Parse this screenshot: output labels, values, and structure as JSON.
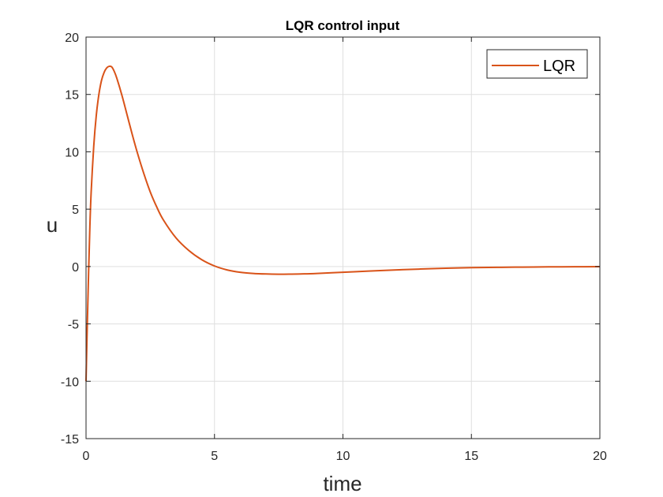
{
  "chart_data": {
    "type": "line",
    "title": "LQR control input",
    "xlabel": "time",
    "ylabel": "u",
    "xlim": [
      0,
      20
    ],
    "ylim": [
      -15,
      20
    ],
    "xticks": [
      0,
      5,
      10,
      15,
      20
    ],
    "yticks": [
      -15,
      -10,
      -5,
      0,
      5,
      10,
      15,
      20
    ],
    "grid": true,
    "legend_position": "top-right",
    "series": [
      {
        "name": "LQR",
        "color": "#d95319",
        "x": [
          0,
          0.05,
          0.1,
          0.15,
          0.2,
          0.3,
          0.4,
          0.5,
          0.6,
          0.7,
          0.8,
          0.9,
          1.0,
          1.1,
          1.2,
          1.4,
          1.6,
          1.8,
          2.0,
          2.25,
          2.5,
          2.75,
          3.0,
          3.5,
          4.0,
          4.5,
          5.0,
          5.5,
          6.0,
          6.5,
          7.0,
          7.5,
          8.0,
          8.5,
          9.0,
          10.0,
          11.0,
          12.0,
          13.0,
          14.0,
          15.0,
          16.0,
          17.0,
          18.0,
          19.0,
          20.0
        ],
        "y": [
          -10,
          -5,
          -0.5,
          3.5,
          6.5,
          10.5,
          13.2,
          15.0,
          16.2,
          16.9,
          17.3,
          17.45,
          17.4,
          17.0,
          16.4,
          14.9,
          13.2,
          11.5,
          9.9,
          8.1,
          6.5,
          5.2,
          4.1,
          2.5,
          1.4,
          0.6,
          0.05,
          -0.3,
          -0.5,
          -0.6,
          -0.65,
          -0.67,
          -0.66,
          -0.64,
          -0.6,
          -0.5,
          -0.4,
          -0.3,
          -0.22,
          -0.15,
          -0.1,
          -0.07,
          -0.05,
          -0.03,
          -0.02,
          -0.01
        ]
      }
    ]
  }
}
